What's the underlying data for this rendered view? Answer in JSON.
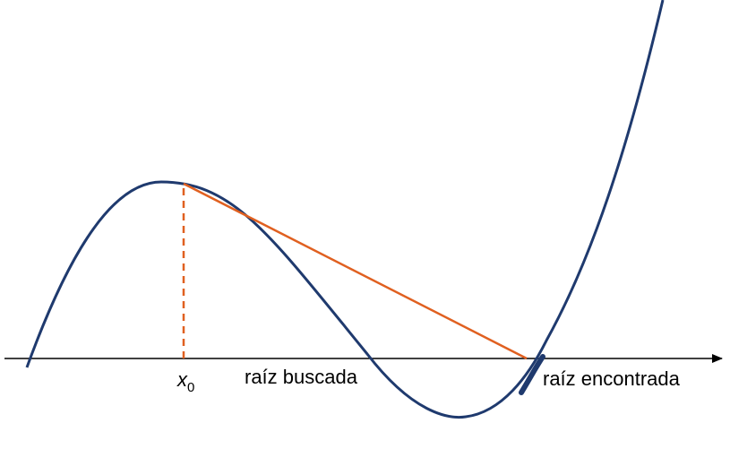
{
  "labels": {
    "x0_symbol": "x",
    "x0_subscript": "0",
    "target_root": "raíz buscada",
    "found_root": "raíz encontrada"
  },
  "colors": {
    "curve": "#1f3a6e",
    "tangent": "#e06020",
    "axis": "#000000",
    "background": "#ffffff"
  }
}
